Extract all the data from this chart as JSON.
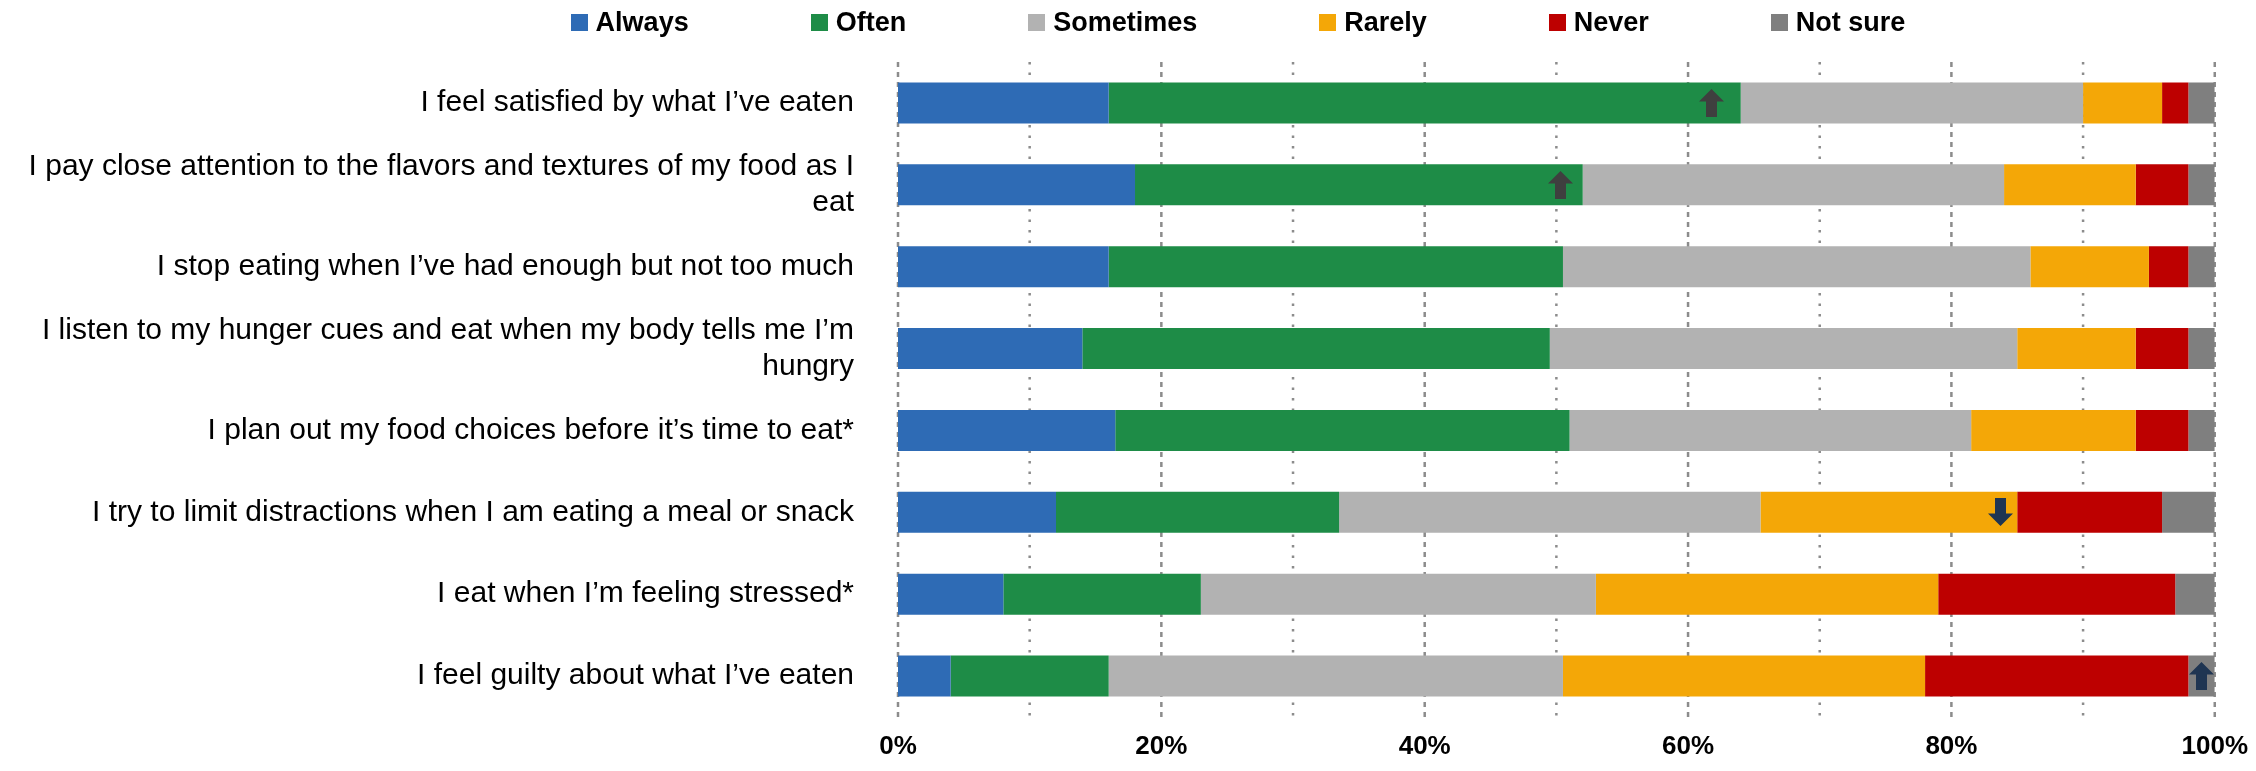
{
  "chart_data": {
    "type": "bar",
    "orientation": "horizontal",
    "stacked": true,
    "categories": [
      "I feel satisfied by what I’ve eaten",
      "I pay close attention to the flavors and textures of my food as I eat",
      "I stop eating when I’ve had enough but not too much",
      "I listen to my hunger cues and eat when my body tells me I’m hungry",
      "I plan out my food choices before it’s time to eat*",
      "I try to limit distractions when I am eating a meal or snack",
      "I eat when I’m feeling stressed*",
      "I feel guilty about what I’ve eaten"
    ],
    "series": [
      {
        "name": "Always",
        "color": "#2e6bb5",
        "values": [
          16,
          18,
          16,
          14,
          16.5,
          12,
          8,
          4
        ]
      },
      {
        "name": "Often",
        "color": "#1e8c47",
        "values": [
          48,
          34,
          34.5,
          35.5,
          34.5,
          21.5,
          15,
          12
        ]
      },
      {
        "name": "Sometimes",
        "color": "#b2b2b2",
        "values": [
          26,
          32,
          35.5,
          35.5,
          30.5,
          32,
          30,
          34.5
        ]
      },
      {
        "name": "Rarely",
        "color": "#f4a707",
        "values": [
          6,
          10,
          9,
          9,
          12.5,
          19.5,
          26,
          27.5
        ]
      },
      {
        "name": "Never",
        "color": "#bd0000",
        "values": [
          2,
          4,
          3,
          4,
          4,
          11,
          18,
          20
        ]
      },
      {
        "name": "Not sure",
        "color": "#7f7f7f",
        "values": [
          2,
          2,
          2,
          2,
          2,
          4,
          3,
          2
        ]
      }
    ],
    "xlim": [
      0,
      100
    ],
    "xticks": [
      {
        "value": 0,
        "label": "0%"
      },
      {
        "value": 10,
        "label": null
      },
      {
        "value": 20,
        "label": "20%"
      },
      {
        "value": 30,
        "label": null
      },
      {
        "value": 40,
        "label": "40%"
      },
      {
        "value": 50,
        "label": null
      },
      {
        "value": 60,
        "label": "60%"
      },
      {
        "value": 70,
        "label": null
      },
      {
        "value": 80,
        "label": "80%"
      },
      {
        "value": 90,
        "label": null
      },
      {
        "value": 100,
        "label": "100%"
      }
    ],
    "grid": "x",
    "legend": "top"
  }
}
